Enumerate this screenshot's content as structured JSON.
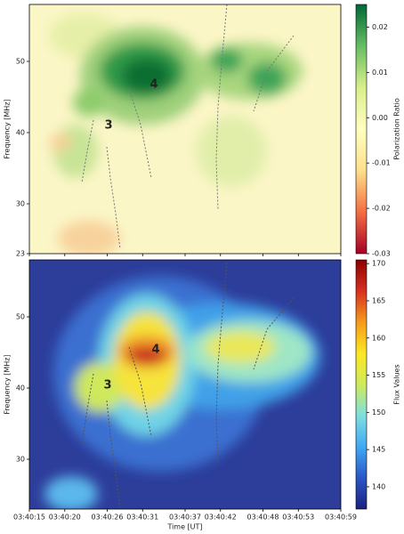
{
  "chart_data": [
    {
      "type": "heatmap",
      "ylabel": "Frequency [MHz]",
      "ylim": [
        58,
        23
      ],
      "yticks": [
        23,
        30,
        40,
        50
      ],
      "xlim": [
        "03:40:15",
        "03:40:59"
      ],
      "colorbar_label": "Polarization Ratio",
      "clim": [
        -0.03,
        0.025
      ],
      "cticks": [
        0.02,
        0.01,
        {
          "value": 0,
          "label": "0.00"
        },
        -0.01,
        -0.02,
        -0.03
      ],
      "colormap": [
        "#a50026",
        "#f46d43",
        "#fee08b",
        "#ffffbf",
        "#d9ef8b",
        "#66bd63",
        "#006837"
      ],
      "annotations": [
        "3",
        "4"
      ]
    },
    {
      "type": "heatmap",
      "ylabel": "Frequency [MHz]",
      "xlabel": "Time [UT]",
      "ylim": [
        58,
        23
      ],
      "yticks": [
        30,
        40,
        50
      ],
      "xlim": [
        "03:40:15",
        "03:40:59"
      ],
      "xticks": [
        "03:40:15",
        "03:40:20",
        "03:40:26",
        "03:40:31",
        "03:40:37",
        "03:40:42",
        "03:40:48",
        "03:40:53",
        "03:40:59"
      ],
      "colorbar_label": "Flux Values",
      "clim": [
        137,
        170.5
      ],
      "cticks": [
        170,
        165,
        160,
        155,
        150,
        145,
        140
      ],
      "colormap": [
        "#1a237e",
        "#2a56c6",
        "#3fa9f5",
        "#7fdfe0",
        "#cdeb5a",
        "#fde725",
        "#f59b1a",
        "#d7301f",
        "#8b0000"
      ],
      "annotations": [
        "3",
        "4"
      ]
    }
  ]
}
